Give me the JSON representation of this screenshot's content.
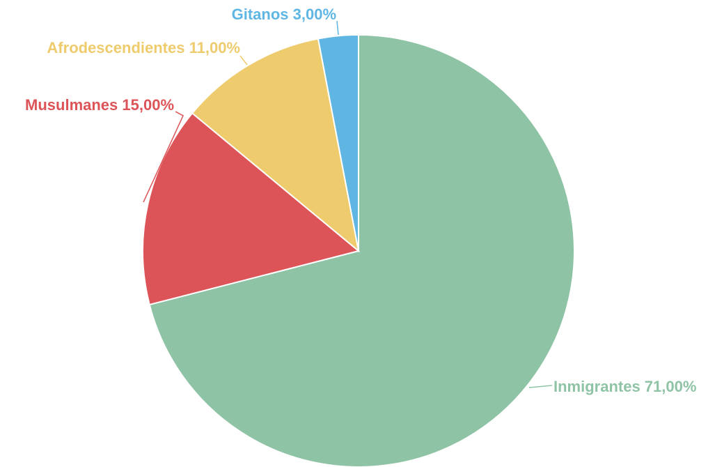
{
  "chart_data": {
    "type": "pie",
    "title": "",
    "start_angle_deg": 0,
    "direction": "clockwise",
    "slices": [
      {
        "label": "Inmigrantes",
        "value": 71.0,
        "display": "71,00%",
        "color": "#8fc3a6"
      },
      {
        "label": "Musulmanes",
        "value": 15.0,
        "display": "15,00%",
        "color": "#dc5457"
      },
      {
        "label": "Afrodescendientes",
        "value": 11.0,
        "display": "11,00%",
        "color": "#eecb6c"
      },
      {
        "label": "Gitanos",
        "value": 3.0,
        "display": "3,00%",
        "color": "#5fb6e3"
      }
    ],
    "legend": "none",
    "labels": "outside-with-leader-lines"
  }
}
